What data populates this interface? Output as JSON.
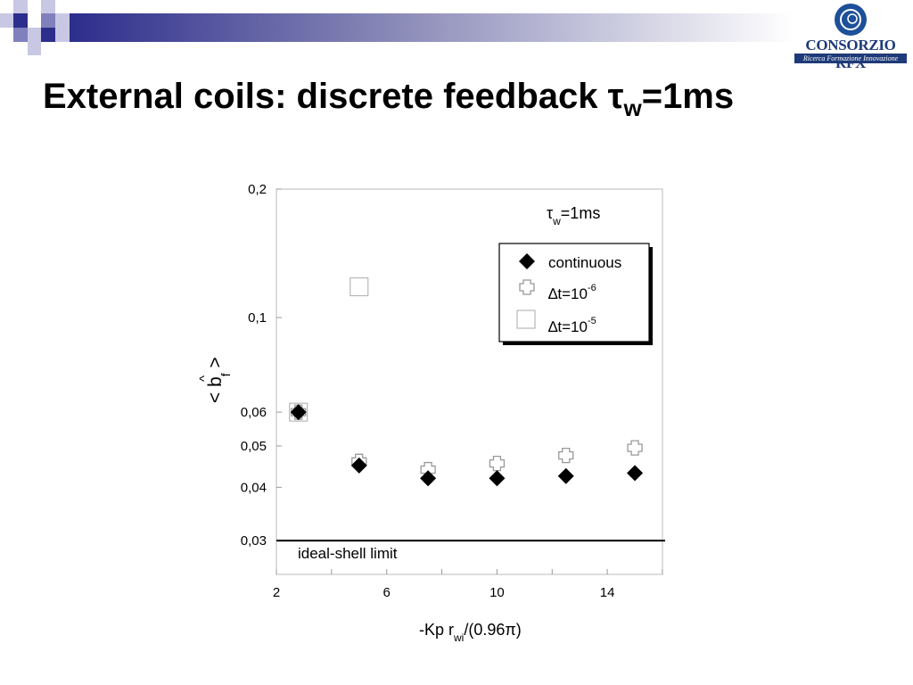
{
  "slide": {
    "title_main": "External coils: discrete feedback  τ",
    "title_sub": "w",
    "title_tail": "=1ms"
  },
  "logo": {
    "name": "CONSORZIO RFX",
    "tagline": "Ricerca Formazione Innovazione"
  },
  "chart_data": {
    "type": "scatter",
    "x_scale": "linear",
    "y_scale": "log",
    "xlim": [
      2,
      16
    ],
    "ylim": [
      0.025,
      0.2
    ],
    "x_ticks": [
      2,
      6,
      10,
      14
    ],
    "x_tick_labels": [
      "2",
      "6",
      "10",
      "14"
    ],
    "y_ticks": [
      0.2,
      0.1,
      0.06,
      0.05,
      0.04,
      0.03
    ],
    "y_tick_labels": [
      "0,2",
      "0,1",
      "0,06",
      "0,05",
      "0,04",
      "0,03"
    ],
    "xlabel": {
      "main": "-Kp r",
      "sub": "wi",
      "tail": "/(0.96π)"
    },
    "ylabel": {
      "pre": "< b",
      "hat": "^",
      "sub": "f",
      "post": " >"
    },
    "annotation_tau": {
      "sym": "τ",
      "sub": "w",
      "tail": "=1ms"
    },
    "reference_line": {
      "y": 0.03,
      "label": "ideal-shell limit"
    },
    "legend": {
      "position": "top-right",
      "items": [
        {
          "label": "continuous",
          "sup": ""
        },
        {
          "label": "∆t=10",
          "sup": "-6"
        },
        {
          "label": "∆t=10",
          "sup": "-5"
        }
      ]
    },
    "series": [
      {
        "name": "continuous",
        "marker": "filled-diamond",
        "color": "#000000",
        "x": [
          2.8,
          5,
          7.5,
          10,
          12.5,
          15
        ],
        "y": [
          0.06,
          0.045,
          0.042,
          0.042,
          0.0425,
          0.0432
        ]
      },
      {
        "name": "∆t=10-6",
        "marker": "open-cross",
        "color": "#999999",
        "x": [
          2.8,
          5,
          7.5,
          10,
          12.5,
          15
        ],
        "y": [
          0.06,
          0.046,
          0.044,
          0.0455,
          0.0475,
          0.0495
        ]
      },
      {
        "name": "∆t=10-5",
        "marker": "open-square",
        "color": "#999999",
        "x": [
          2.8,
          5
        ],
        "y": [
          0.06,
          0.118
        ]
      }
    ]
  }
}
